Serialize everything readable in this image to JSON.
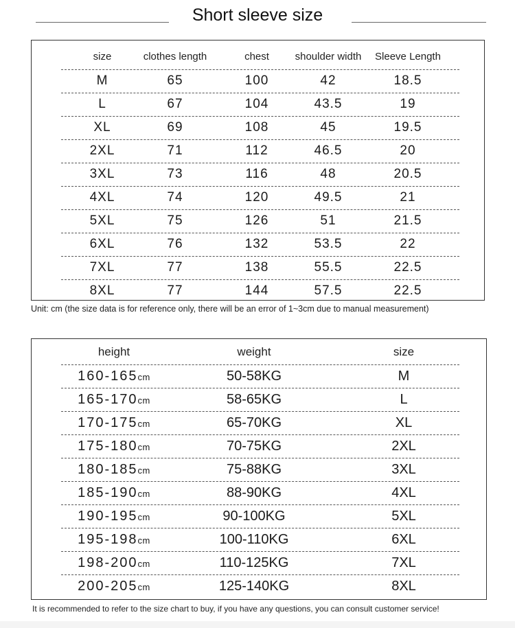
{
  "title": "Short sleeve size",
  "size_table": {
    "headers": [
      "size",
      "clothes length",
      "chest",
      "shoulder width",
      "Sleeve Length"
    ],
    "rows": [
      [
        "M",
        "65",
        "100",
        "42",
        "18.5"
      ],
      [
        "L",
        "67",
        "104",
        "43.5",
        "19"
      ],
      [
        "XL",
        "69",
        "108",
        "45",
        "19.5"
      ],
      [
        "2XL",
        "71",
        "112",
        "46.5",
        "20"
      ],
      [
        "3XL",
        "73",
        "116",
        "48",
        "20.5"
      ],
      [
        "4XL",
        "74",
        "120",
        "49.5",
        "21"
      ],
      [
        "5XL",
        "75",
        "126",
        "51",
        "21.5"
      ],
      [
        "6XL",
        "76",
        "132",
        "53.5",
        "22"
      ],
      [
        "7XL",
        "77",
        "138",
        "55.5",
        "22.5"
      ],
      [
        "8XL",
        "77",
        "144",
        "57.5",
        "22.5"
      ]
    ],
    "note": "Unit: cm (the size data is for reference only, there will be an error of 1~3cm due to manual measurement)"
  },
  "fit_table": {
    "headers": [
      "height",
      "weight",
      "size"
    ],
    "unit": "cm",
    "rows": [
      [
        "160-165",
        "50-58KG",
        "M"
      ],
      [
        "165-170",
        "58-65KG",
        "L"
      ],
      [
        "170-175",
        "65-70KG",
        "XL"
      ],
      [
        "175-180",
        "70-75KG",
        "2XL"
      ],
      [
        "180-185",
        "75-88KG",
        "3XL"
      ],
      [
        "185-190",
        "88-90KG",
        "4XL"
      ],
      [
        "190-195",
        "90-100KG",
        "5XL"
      ],
      [
        "195-198",
        "100-110KG",
        "6XL"
      ],
      [
        "198-200",
        "110-125KG",
        "7XL"
      ],
      [
        "200-205",
        "125-140KG",
        "8XL"
      ]
    ],
    "note": "It is recommended to refer to the size chart to buy, if you have any questions, you can consult customer service!"
  }
}
